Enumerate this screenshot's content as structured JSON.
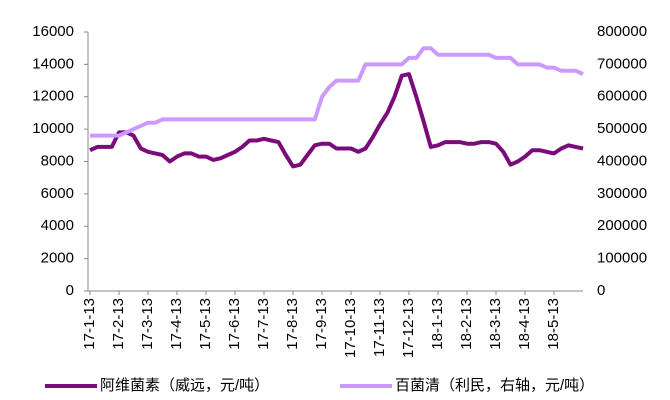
{
  "chart_data": {
    "type": "line",
    "categories": [
      "17-1-13",
      null,
      null,
      null,
      "17-2-13",
      null,
      null,
      null,
      "17-3-13",
      null,
      null,
      null,
      "17-4-13",
      null,
      null,
      null,
      "17-5-13",
      null,
      null,
      null,
      "17-6-13",
      null,
      null,
      null,
      "17-7-13",
      null,
      null,
      null,
      "17-8-13",
      null,
      null,
      null,
      "17-9-13",
      null,
      null,
      null,
      "17-10-13",
      null,
      null,
      null,
      "17-11-13",
      null,
      null,
      null,
      "17-12-13",
      null,
      null,
      null,
      "18-1-13",
      null,
      null,
      null,
      "18-2-13",
      null,
      null,
      null,
      "18-3-13",
      null,
      null,
      null,
      "18-4-13",
      null,
      null,
      null,
      "18-5-13",
      null,
      null,
      null,
      null
    ],
    "series": [
      {
        "name": "阿维菌素（威远，元/吨）",
        "color": "#7b0a7b",
        "axis": "y",
        "values": [
          8700,
          8900,
          8900,
          8900,
          9800,
          9800,
          9600,
          8800,
          8600,
          8500,
          8400,
          8000,
          8300,
          8500,
          8500,
          8300,
          8300,
          8100,
          8200,
          8400,
          8600,
          8900,
          9300,
          9300,
          9400,
          9300,
          9200,
          8400,
          7700,
          7800,
          8400,
          9000,
          9100,
          9100,
          8800,
          8800,
          8800,
          8600,
          8800,
          9500,
          10300,
          11000,
          12000,
          13300,
          13400,
          12000,
          10500,
          8900,
          9000,
          9200,
          9200,
          9200,
          9100,
          9100,
          9200,
          9200,
          9100,
          8600,
          7800,
          8000,
          8300,
          8700,
          8700,
          8600,
          8500,
          8800,
          9000,
          8900,
          8800
        ]
      },
      {
        "name": "百菌清（利民，右轴，元/吨）",
        "color": "#cc99ff",
        "axis": "y2",
        "values": [
          480000,
          480000,
          480000,
          480000,
          480000,
          490000,
          500000,
          510000,
          520000,
          520000,
          530000,
          530000,
          530000,
          530000,
          530000,
          530000,
          530000,
          530000,
          530000,
          530000,
          530000,
          530000,
          530000,
          530000,
          530000,
          530000,
          530000,
          530000,
          530000,
          530000,
          530000,
          530000,
          600000,
          630000,
          650000,
          650000,
          650000,
          650000,
          700000,
          700000,
          700000,
          700000,
          700000,
          700000,
          720000,
          720000,
          750000,
          750000,
          730000,
          730000,
          730000,
          730000,
          730000,
          730000,
          730000,
          730000,
          720000,
          720000,
          720000,
          700000,
          700000,
          700000,
          700000,
          690000,
          690000,
          680000,
          680000,
          680000,
          670000
        ]
      }
    ],
    "ylim": [
      0,
      16000
    ],
    "yticks": [
      0,
      2000,
      4000,
      6000,
      8000,
      10000,
      12000,
      14000,
      16000
    ],
    "y2lim": [
      0,
      800000
    ],
    "y2ticks": [
      0,
      100000,
      200000,
      300000,
      400000,
      500000,
      600000,
      700000,
      800000
    ],
    "legend": "bottom"
  }
}
